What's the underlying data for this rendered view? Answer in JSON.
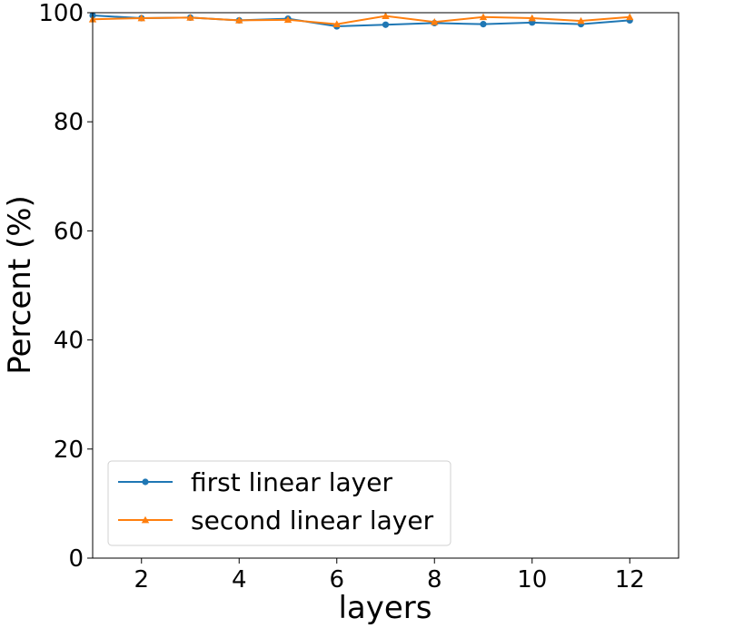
{
  "chart_data": {
    "type": "line",
    "xlabel": "layers",
    "ylabel": "Percent (%)",
    "xlim": [
      1,
      13
    ],
    "ylim": [
      0,
      100
    ],
    "xticks": [
      2,
      4,
      6,
      8,
      10,
      12
    ],
    "yticks": [
      0,
      20,
      40,
      60,
      80,
      100
    ],
    "x": [
      1,
      2,
      3,
      4,
      5,
      6,
      7,
      8,
      9,
      10,
      11,
      12
    ],
    "series": [
      {
        "name": "first linear layer",
        "color": "#1f77b4",
        "marker": "circle",
        "values": [
          99.5,
          99.0,
          99.1,
          98.6,
          98.9,
          97.5,
          97.8,
          98.1,
          97.9,
          98.2,
          97.9,
          98.6
        ]
      },
      {
        "name": "second linear layer",
        "color": "#ff7f0e",
        "marker": "triangle",
        "values": [
          98.8,
          99.0,
          99.1,
          98.6,
          98.7,
          97.9,
          99.4,
          98.3,
          99.2,
          99.0,
          98.5,
          99.2
        ]
      }
    ],
    "legend": "lower-left",
    "grid": false
  }
}
